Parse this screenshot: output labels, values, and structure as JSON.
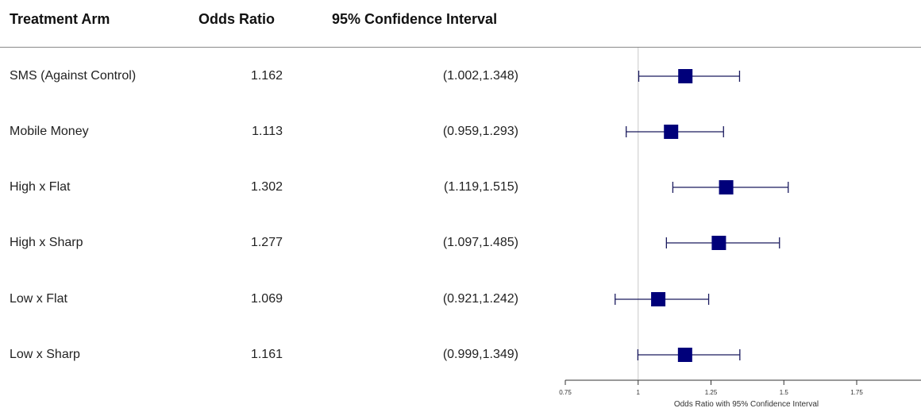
{
  "header": {
    "arm": "Treatment Arm",
    "odds_ratio": "Odds Ratio",
    "ci": "95% Confidence Interval"
  },
  "rows": [
    {
      "arm": "SMS (Against Control)",
      "or": "1.162",
      "ci": "(1.002,1.348)"
    },
    {
      "arm": "Mobile Money",
      "or": "1.113",
      "ci": "(0.959,1.293)"
    },
    {
      "arm": "High x Flat",
      "or": "1.302",
      "ci": "(1.119,1.515)"
    },
    {
      "arm": "High x Sharp",
      "or": "1.277",
      "ci": "(1.097,1.485)"
    },
    {
      "arm": "Low x Flat",
      "or": "1.069",
      "ci": "(0.921,1.242)"
    },
    {
      "arm": "Low x Sharp",
      "or": "1.161",
      "ci": "(0.999,1.349)"
    }
  ],
  "chart_data": {
    "type": "forest",
    "xlabel": "Odds Ratio with 95% Confidence Interval",
    "xticks": [
      "0.75",
      "1",
      "1.25",
      "1.5",
      "1.75"
    ],
    "xlim": [
      0.75,
      2.0
    ],
    "reference_line": 1,
    "series": [
      {
        "label": "SMS (Against Control)",
        "value": 1.162,
        "lower": 1.002,
        "upper": 1.348
      },
      {
        "label": "Mobile Money",
        "value": 1.113,
        "lower": 0.959,
        "upper": 1.293
      },
      {
        "label": "High x Flat",
        "value": 1.302,
        "lower": 1.119,
        "upper": 1.515
      },
      {
        "label": "High x Sharp",
        "value": 1.277,
        "lower": 1.097,
        "upper": 1.485
      },
      {
        "label": "Low x Flat",
        "value": 1.069,
        "lower": 0.921,
        "upper": 1.242
      },
      {
        "label": "Low x Sharp",
        "value": 1.161,
        "lower": 0.999,
        "upper": 1.349
      }
    ],
    "colors": {
      "marker": "#00007a",
      "ci_line": "#1a1a5e",
      "reference": "#c8c8c8",
      "axis": "#333333"
    }
  }
}
